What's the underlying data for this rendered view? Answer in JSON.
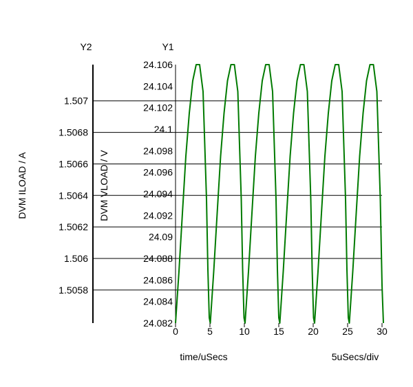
{
  "chart_data": {
    "type": "line",
    "y1_header": "Y1",
    "y2_header": "Y2",
    "y1_label": "DVM VLOAD / V",
    "y2_label": "DVM ILOAD / A",
    "xlabel": "time/uSecs",
    "x_scale_label": "5uSecs/div",
    "xlim": [
      0,
      30
    ],
    "y1lim": [
      24.082,
      24.106
    ],
    "y2lim": [
      1.50559,
      1.50723
    ],
    "x_ticks": [
      "0",
      "5",
      "10",
      "15",
      "20",
      "25",
      "30"
    ],
    "y1_ticks": [
      "24.106",
      "24.104",
      "24.102",
      "24.1",
      "24.098",
      "24.096",
      "24.094",
      "24.092",
      "24.09",
      "24.088",
      "24.086",
      "24.084",
      "24.082"
    ],
    "y2_ticks": [
      "1.507",
      "1.5068",
      "1.5066",
      "1.5064",
      "1.5062",
      "1.506",
      "1.5058"
    ],
    "grid": true,
    "series": [
      {
        "axis": "y1",
        "color": "#007a00",
        "period_us": 5.05,
        "points": [
          [
            0,
            24.082
          ],
          [
            0.5,
            24.0868
          ],
          [
            1.0,
            24.0922
          ],
          [
            1.5,
            24.0975
          ],
          [
            2.0,
            24.1015
          ],
          [
            2.5,
            24.1045
          ],
          [
            3.0,
            24.106
          ],
          [
            3.5,
            24.106
          ],
          [
            4.0,
            24.1035
          ],
          [
            4.5,
            24.0935
          ],
          [
            4.7,
            24.087
          ],
          [
            4.9,
            24.0825
          ],
          [
            5.05,
            24.082
          ],
          [
            5.55,
            24.0868
          ],
          [
            6.05,
            24.0922
          ],
          [
            6.55,
            24.0975
          ],
          [
            7.05,
            24.1015
          ],
          [
            7.55,
            24.1045
          ],
          [
            8.05,
            24.106
          ],
          [
            8.55,
            24.106
          ],
          [
            9.05,
            24.1035
          ],
          [
            9.55,
            24.0935
          ],
          [
            9.75,
            24.087
          ],
          [
            9.95,
            24.0825
          ],
          [
            10.1,
            24.082
          ],
          [
            10.6,
            24.0868
          ],
          [
            11.1,
            24.0922
          ],
          [
            11.6,
            24.0975
          ],
          [
            12.1,
            24.1015
          ],
          [
            12.6,
            24.1045
          ],
          [
            13.1,
            24.106
          ],
          [
            13.6,
            24.106
          ],
          [
            14.1,
            24.1035
          ],
          [
            14.6,
            24.0935
          ],
          [
            14.8,
            24.087
          ],
          [
            15.0,
            24.0825
          ],
          [
            15.15,
            24.082
          ],
          [
            15.65,
            24.0868
          ],
          [
            16.15,
            24.0922
          ],
          [
            16.65,
            24.0975
          ],
          [
            17.15,
            24.1015
          ],
          [
            17.65,
            24.1045
          ],
          [
            18.15,
            24.106
          ],
          [
            18.65,
            24.106
          ],
          [
            19.15,
            24.1035
          ],
          [
            19.65,
            24.0935
          ],
          [
            19.85,
            24.087
          ],
          [
            20.05,
            24.0825
          ],
          [
            20.2,
            24.082
          ],
          [
            20.7,
            24.0868
          ],
          [
            21.2,
            24.0922
          ],
          [
            21.7,
            24.0975
          ],
          [
            22.2,
            24.1015
          ],
          [
            22.7,
            24.1045
          ],
          [
            23.2,
            24.106
          ],
          [
            23.7,
            24.106
          ],
          [
            24.2,
            24.1035
          ],
          [
            24.7,
            24.0935
          ],
          [
            24.9,
            24.087
          ],
          [
            25.1,
            24.0825
          ],
          [
            25.25,
            24.082
          ],
          [
            25.75,
            24.0868
          ],
          [
            26.25,
            24.0922
          ],
          [
            26.75,
            24.0975
          ],
          [
            27.25,
            24.1015
          ],
          [
            27.75,
            24.1045
          ],
          [
            28.25,
            24.106
          ],
          [
            28.75,
            24.106
          ],
          [
            29.25,
            24.1035
          ],
          [
            29.75,
            24.0935
          ],
          [
            30.0,
            24.0855
          ],
          [
            30.2,
            24.082
          ]
        ]
      }
    ]
  }
}
